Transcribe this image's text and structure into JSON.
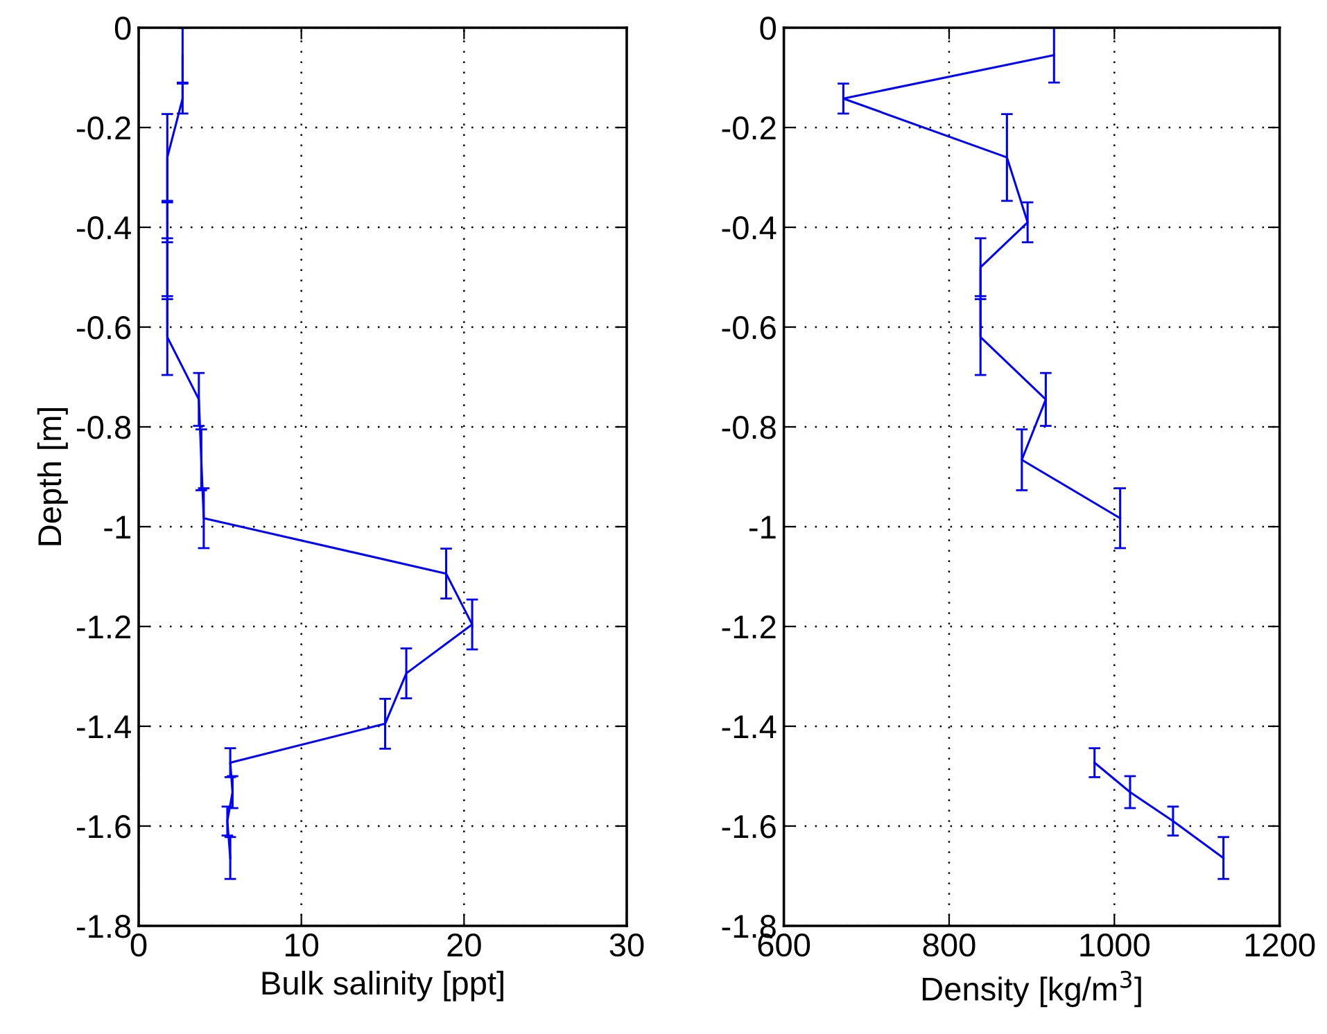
{
  "chart_data": [
    {
      "type": "line",
      "xlabel": "Bulk salinity [ppt]",
      "ylabel": "Depth [m]",
      "xlim": [
        0,
        30
      ],
      "xticks": [
        0,
        10,
        20,
        30
      ],
      "ylim": [
        -1.8,
        0
      ],
      "yticks": [
        0,
        -0.2,
        -0.4,
        -0.6,
        -0.8,
        -1,
        -1.2,
        -1.4,
        -1.6,
        -1.8
      ],
      "grid": true,
      "marker": "none",
      "line_style": "solid",
      "series": [
        {
          "color": "#0000ff",
          "x": [
            2.7,
            2.7,
            1.76,
            1.76,
            1.76,
            1.76,
            3.7,
            3.85,
            4.0,
            18.9,
            20.5,
            16.45,
            15.15,
            5.63,
            5.77,
            5.45,
            5.63
          ],
          "values": [
            -0.055,
            -0.142,
            -0.26,
            -0.39,
            -0.48,
            -0.62,
            -0.745,
            -0.866,
            -0.983,
            -1.094,
            -1.196,
            -1.294,
            -1.395,
            -1.473,
            -1.532,
            -1.59,
            -1.664
          ],
          "errors": [
            0.055,
            0.03,
            0.087,
            0.04,
            0.058,
            0.076,
            0.053,
            0.061,
            0.06,
            0.05,
            0.05,
            0.05,
            0.05,
            0.029,
            0.032,
            0.029,
            0.042
          ]
        }
      ]
    },
    {
      "type": "line",
      "xlabel": "Density [kg/m$^{3}$]",
      "xlim": [
        600,
        1200
      ],
      "xticks": [
        600,
        800,
        1000,
        1200
      ],
      "ylim": [
        -1.8,
        0
      ],
      "yticks": [
        0,
        -0.2,
        -0.4,
        -0.6,
        -0.8,
        -1,
        -1.2,
        -1.4,
        -1.6,
        -1.8
      ],
      "grid": true,
      "marker": "none",
      "line_style": "solid",
      "series": [
        {
          "color": "#0000ff",
          "x": [
            927,
            672,
            870,
            895,
            838,
            838,
            917,
            888,
            1007,
            null,
            null,
            null,
            null,
            976,
            1019,
            1071,
            1132
          ],
          "values": [
            -0.055,
            -0.142,
            -0.26,
            -0.39,
            -0.48,
            -0.62,
            -0.745,
            -0.866,
            -0.983,
            null,
            null,
            null,
            null,
            -1.473,
            -1.532,
            -1.59,
            -1.664
          ],
          "errors": [
            0.055,
            0.03,
            0.087,
            0.04,
            0.058,
            0.076,
            0.053,
            0.061,
            0.06,
            null,
            null,
            null,
            null,
            0.029,
            0.032,
            0.029,
            0.042
          ]
        }
      ]
    }
  ]
}
